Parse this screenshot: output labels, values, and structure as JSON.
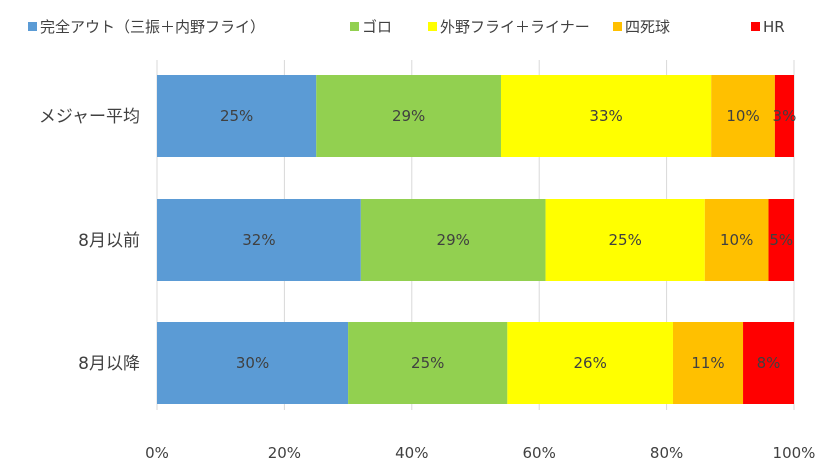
{
  "chart_data": {
    "type": "bar",
    "orientation": "horizontal",
    "stacked": true,
    "percent_stacked": true,
    "legend_position": "top",
    "grid": "vertical",
    "categories": [
      "メジャー平均",
      "8月以前",
      "8月以降"
    ],
    "series": [
      {
        "name": "完全アウト（三振＋内野フライ）",
        "color": "#5B9BD5",
        "values": [
          25,
          32,
          30
        ],
        "labels": [
          "25%",
          "32%",
          "30%"
        ]
      },
      {
        "name": "ゴロ",
        "color": "#92D050",
        "values": [
          29,
          29,
          25
        ],
        "labels": [
          "29%",
          "29%",
          "25%"
        ]
      },
      {
        "name": "外野フライ＋ライナー",
        "color": "#FFFF00",
        "values": [
          33,
          25,
          26
        ],
        "labels": [
          "33%",
          "25%",
          "26%"
        ]
      },
      {
        "name": "四死球",
        "color": "#FFC000",
        "values": [
          10,
          10,
          11
        ],
        "labels": [
          "10%",
          "10%",
          "11%"
        ]
      },
      {
        "name": "HR",
        "color": "#FF0000",
        "values": [
          3,
          5,
          8
        ],
        "labels": [
          "3%",
          "5%",
          "8%"
        ]
      }
    ],
    "xlim": [
      0,
      100
    ],
    "x_ticks": [
      0,
      20,
      40,
      60,
      80,
      100
    ],
    "x_tick_labels": [
      "0%",
      "20%",
      "40%",
      "60%",
      "80%",
      "100%"
    ],
    "gridline_color": "#D9D9D9"
  }
}
